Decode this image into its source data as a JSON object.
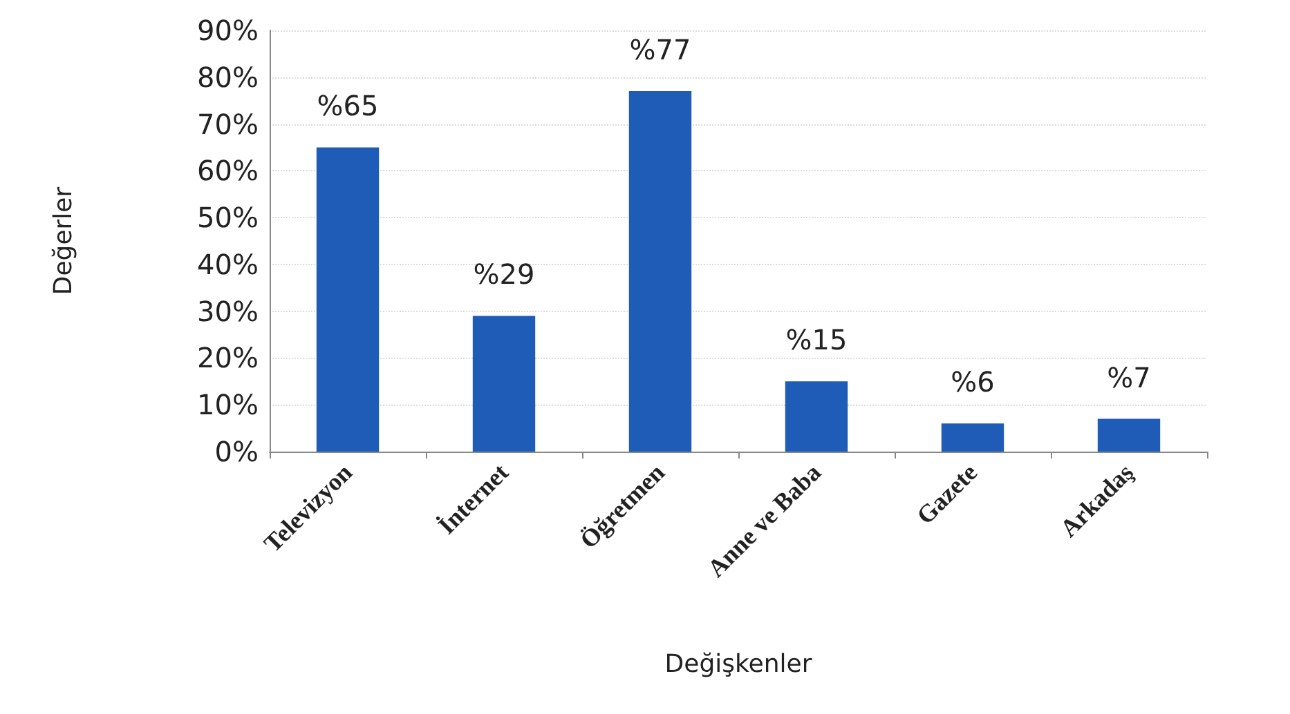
{
  "chart_data": {
    "type": "bar",
    "xlabel": "Değişkenler",
    "ylabel": "Değerler",
    "categories": [
      "Televizyon",
      "İnternet",
      "Öğretmen",
      "Anne ve Baba",
      "Gazete",
      "Arkadaş"
    ],
    "values": [
      65,
      29,
      77,
      15,
      6,
      7
    ],
    "color": "#1f5cb8",
    "value_labels": [
      "%65",
      "%29",
      "%77",
      "%15",
      "%6",
      "%7"
    ],
    "ylim": [
      0,
      90
    ],
    "yticks": [
      {
        "value": 0,
        "label": "0%"
      },
      {
        "value": 10,
        "label": "10%"
      },
      {
        "value": 20,
        "label": "20%"
      },
      {
        "value": 30,
        "label": "30%"
      },
      {
        "value": 40,
        "label": "40%"
      },
      {
        "value": 50,
        "label": "50%"
      },
      {
        "value": 60,
        "label": "60%"
      },
      {
        "value": 70,
        "label": "70%"
      },
      {
        "value": 80,
        "label": "80%"
      },
      {
        "value": 90,
        "label": "90%"
      }
    ],
    "grid": "y"
  }
}
